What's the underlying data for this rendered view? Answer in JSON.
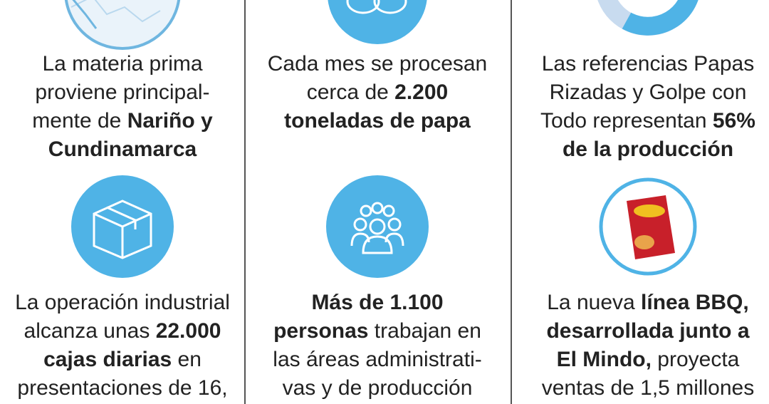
{
  "cells": [
    {
      "lines": [
        [
          {
            "text": "La materia prima",
            "bold": false
          }
        ],
        [
          {
            "text": "proviene principal-",
            "bold": false
          }
        ],
        [
          {
            "text": "mente de ",
            "bold": false
          },
          {
            "text": "Nariño y",
            "bold": true
          }
        ],
        [
          {
            "text": "Cundinamarca",
            "bold": true
          }
        ]
      ]
    },
    {
      "lines": [
        [
          {
            "text": "Cada mes se procesan",
            "bold": false
          }
        ],
        [
          {
            "text": "cerca de ",
            "bold": false
          },
          {
            "text": "2.200",
            "bold": true
          }
        ],
        [
          {
            "text": "toneladas de papa",
            "bold": true
          }
        ]
      ]
    },
    {
      "lines": [
        [
          {
            "text": "Las referencias Papas",
            "bold": false
          }
        ],
        [
          {
            "text": "Rizadas y Golpe con",
            "bold": false
          }
        ],
        [
          {
            "text": "Todo representan ",
            "bold": false
          },
          {
            "text": "56%",
            "bold": true
          }
        ],
        [
          {
            "text": "de la producción",
            "bold": true
          }
        ]
      ]
    },
    {
      "lines": [
        [
          {
            "text": "La operación industrial",
            "bold": false
          }
        ],
        [
          {
            "text": "alcanza unas ",
            "bold": false
          },
          {
            "text": "22.000",
            "bold": true
          }
        ],
        [
          {
            "text": "cajas diarias",
            "bold": true
          },
          {
            "text": " en",
            "bold": false
          }
        ],
        [
          {
            "text": "presentaciones de 16,",
            "bold": false
          }
        ]
      ]
    },
    {
      "lines": [
        [
          {
            "text": "Más de 1.100",
            "bold": true
          }
        ],
        [
          {
            "text": "personas",
            "bold": true
          },
          {
            "text": " trabajan en",
            "bold": false
          }
        ],
        [
          {
            "text": "las áreas administrati-",
            "bold": false
          }
        ],
        [
          {
            "text": "vas y de producción",
            "bold": false
          }
        ]
      ]
    },
    {
      "lines": [
        [
          {
            "text": "La nueva ",
            "bold": false
          },
          {
            "text": "línea BBQ,",
            "bold": true
          }
        ],
        [
          {
            "text": "desarrollada junto a",
            "bold": true
          }
        ],
        [
          {
            "text": "El Mindo,",
            "bold": true
          },
          {
            "text": " proyecta",
            "bold": false
          }
        ],
        [
          {
            "text": "ventas de 1,5 millones",
            "bold": false
          }
        ]
      ]
    }
  ]
}
